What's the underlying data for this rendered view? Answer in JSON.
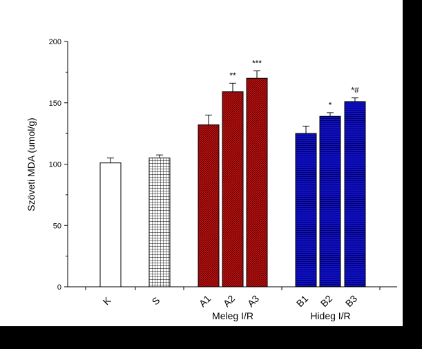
{
  "chart_data": {
    "type": "bar",
    "title": "",
    "ylabel": "Szöveti MDA (umol/g)",
    "xlabel": "",
    "ylim": [
      0,
      200
    ],
    "yticks": [
      0,
      50,
      100,
      150,
      200
    ],
    "categories": [
      "K",
      "S",
      "A1",
      "A2",
      "A3",
      "B1",
      "B2",
      "B3"
    ],
    "values": [
      101,
      105,
      132,
      159,
      170,
      125,
      139,
      151
    ],
    "errors": [
      4,
      2.5,
      8,
      7,
      6,
      6,
      3,
      3
    ],
    "significance": [
      "",
      "",
      "",
      "**",
      "***",
      "",
      "*",
      "*#"
    ],
    "fills": [
      "white",
      "grid",
      "red-hatch",
      "red-hatch",
      "red-hatch",
      "blue-lines",
      "blue-lines",
      "blue-lines"
    ],
    "groups": [
      {
        "label": "Meleg I/R",
        "members": [
          "A1",
          "A2",
          "A3"
        ]
      },
      {
        "label": "Hideg I/R",
        "members": [
          "B1",
          "B2",
          "B3"
        ]
      }
    ],
    "colors": {
      "red": "#cc1111",
      "blue": "#1010cc",
      "axis": "#000000"
    },
    "grid": false
  }
}
